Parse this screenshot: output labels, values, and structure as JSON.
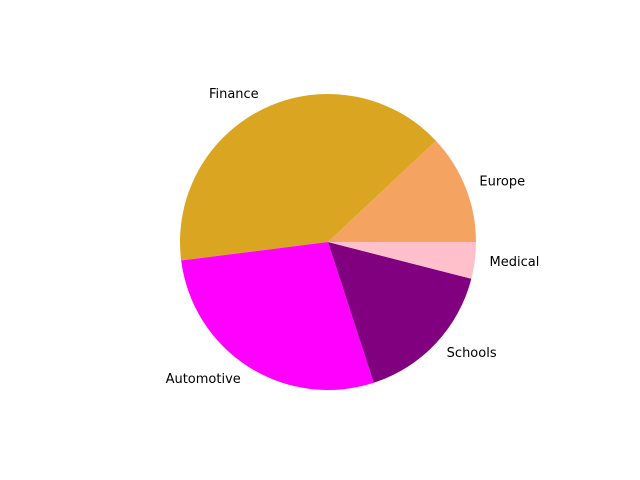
{
  "chart_data": {
    "type": "pie",
    "title": "",
    "legend": "none",
    "start_angle_deg": 0,
    "direction": "counterclockwise",
    "slices": [
      {
        "label": "Europe",
        "value": 12,
        "color": "#F4A460"
      },
      {
        "label": "Finance",
        "value": 40,
        "color": "#DAA520"
      },
      {
        "label": "Automotive",
        "value": 28,
        "color": "#FF00FF"
      },
      {
        "label": "Schools",
        "value": 16,
        "color": "#800080"
      },
      {
        "label": "Medical",
        "value": 4,
        "color": "#FFC0CB"
      }
    ]
  }
}
